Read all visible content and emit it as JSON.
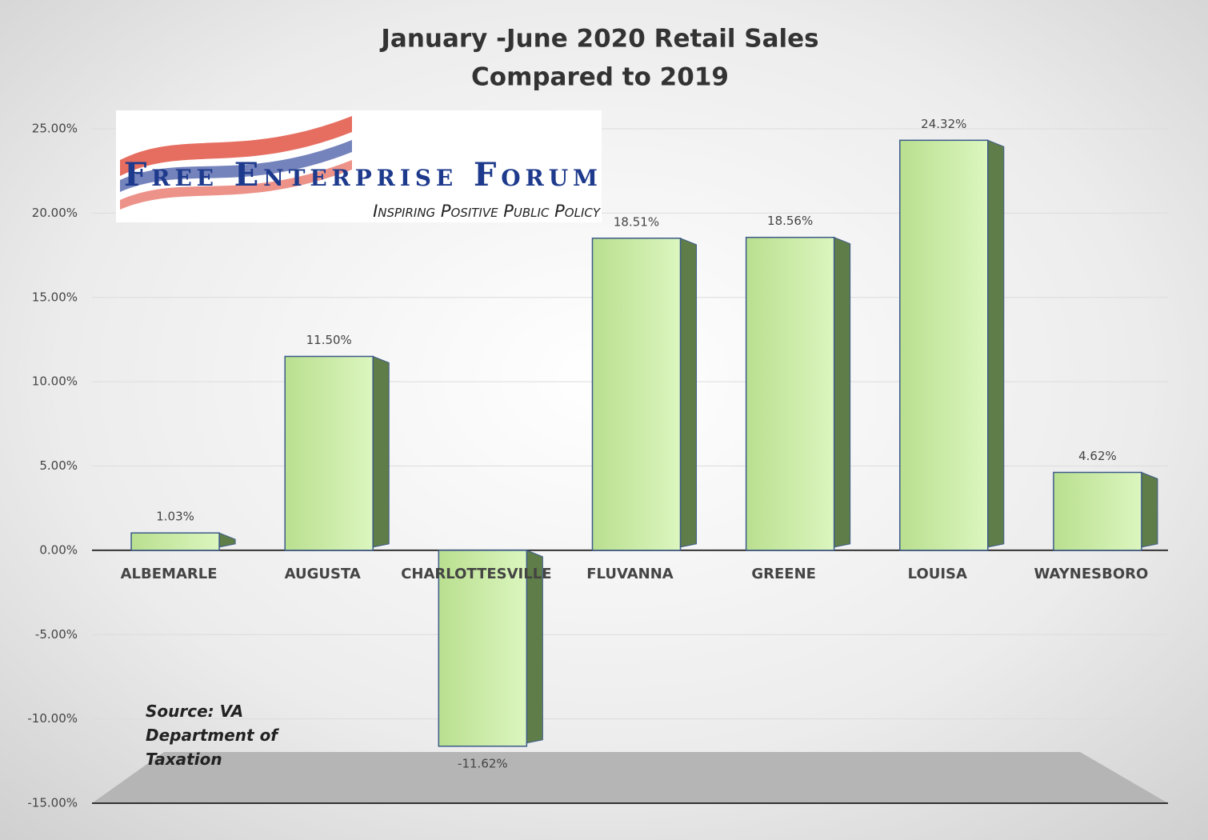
{
  "chart_data": {
    "type": "bar",
    "title": [
      "January -June 2020 Retail Sales",
      "Compared to 2019"
    ],
    "categories": [
      "ALBEMARLE",
      "AUGUSTA",
      "CHARLOTTESVILLE",
      "FLUVANNA",
      "GREENE",
      "LOUISA",
      "WAYNESBORO"
    ],
    "values": [
      1.03,
      11.5,
      -11.62,
      18.51,
      18.56,
      24.32,
      4.62
    ],
    "value_labels": [
      "1.03%",
      "11.50%",
      "-11.62%",
      "18.51%",
      "18.56%",
      "24.32%",
      "4.62%"
    ],
    "color": "#c9eaa3",
    "ylim": [
      -15,
      25
    ],
    "yticks": [
      {
        "value": -15,
        "label": "-15.00%"
      },
      {
        "value": -10,
        "label": "-10.00%"
      },
      {
        "value": -5,
        "label": "-5.00%"
      },
      {
        "value": 0,
        "label": "0.00%"
      },
      {
        "value": 5,
        "label": "5.00%"
      },
      {
        "value": 10,
        "label": "10.00%"
      },
      {
        "value": 15,
        "label": "15.00%"
      },
      {
        "value": 20,
        "label": "20.00%"
      },
      {
        "value": 25,
        "label": "25.00%"
      }
    ],
    "grid": true,
    "annotation": "Source: VA Department of Taxation",
    "logo": {
      "name": "Free Enterprise Forum",
      "tagline": "Inspiring Positive Public Policy"
    }
  }
}
